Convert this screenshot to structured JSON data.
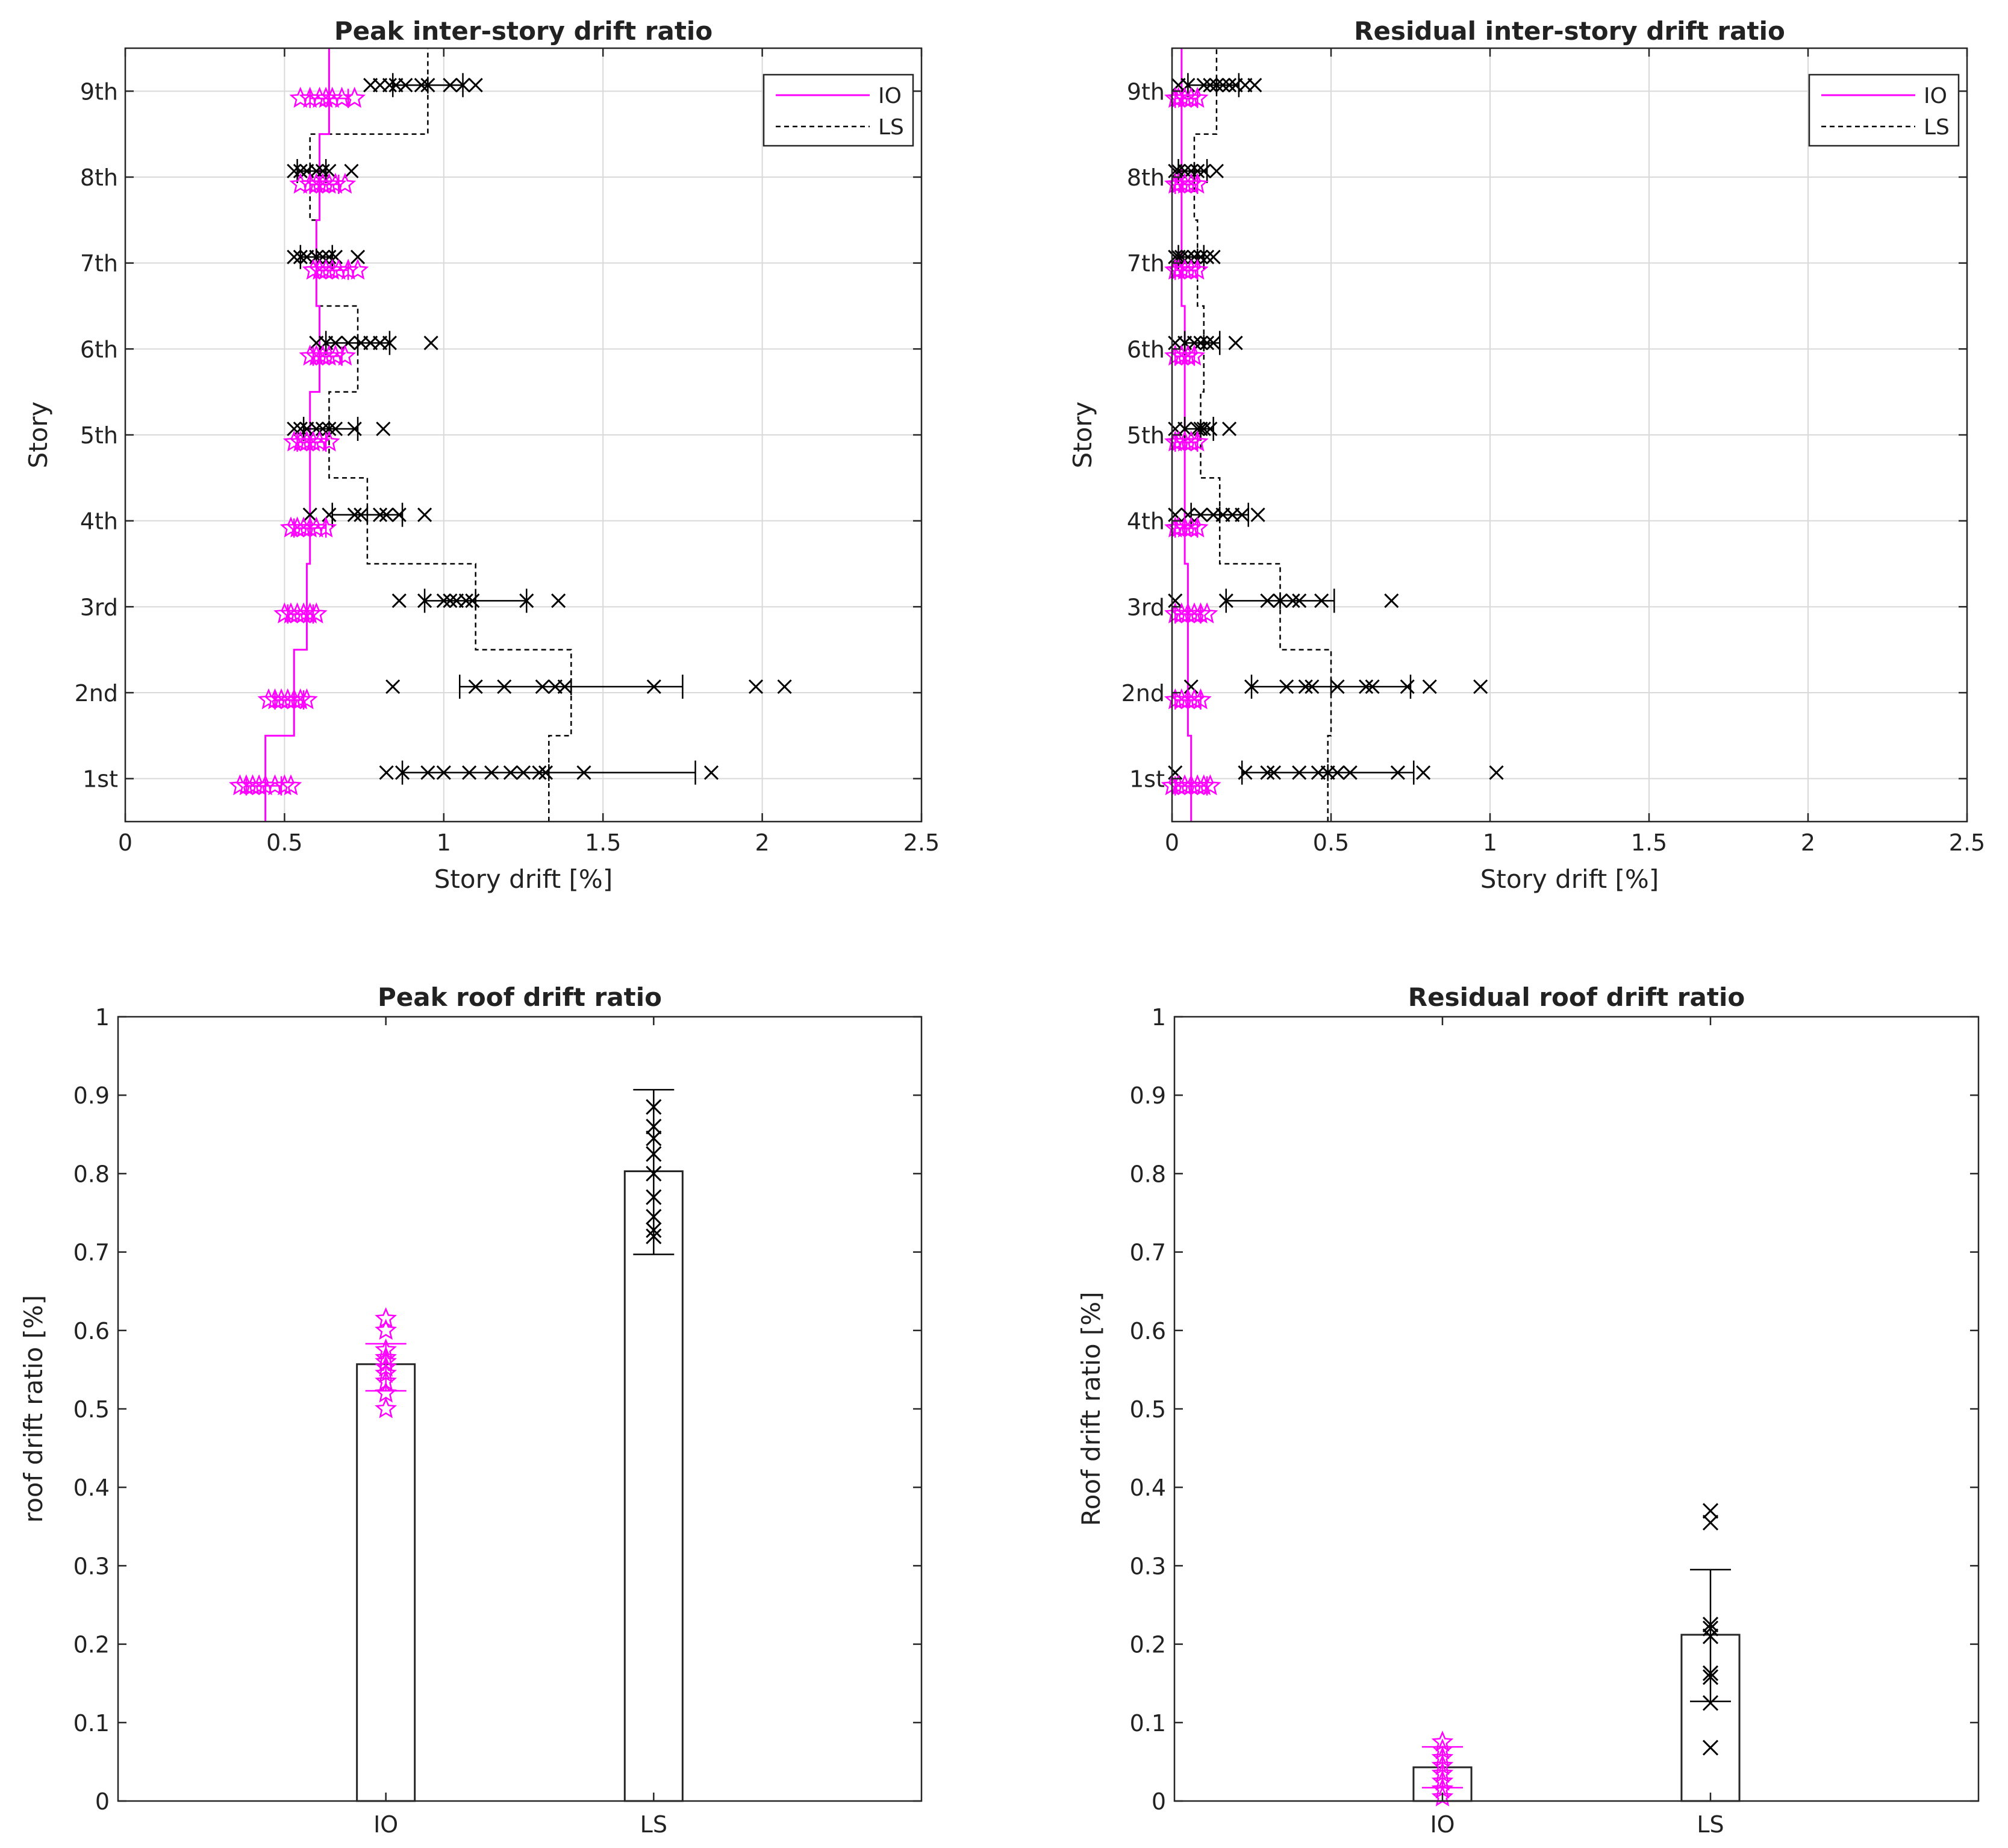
{
  "colors": {
    "io": "#ff00ff",
    "ls": "#000000",
    "grid": "#d9d9d9",
    "axis": "#262626"
  },
  "chart_data": [
    {
      "id": "peak_isdr",
      "type": "scatter",
      "title": "Peak inter-story drift ratio",
      "xlabel": "Story drift [%]",
      "ylabel": "Story",
      "xlim": [
        0,
        2.5
      ],
      "xticks": [
        0,
        0.5,
        1,
        1.5,
        2,
        2.5
      ],
      "xtick_labels": [
        "0",
        "0.5",
        "1",
        "1.5",
        "2",
        "2.5"
      ],
      "stories": [
        "1st",
        "2nd",
        "3rd",
        "4th",
        "5th",
        "6th",
        "7th",
        "8th",
        "9th"
      ],
      "grid": true,
      "legend": {
        "position": "top-right",
        "entries": [
          "IO",
          "LS"
        ]
      },
      "io_limit": [
        0.44,
        0.53,
        0.57,
        0.58,
        0.58,
        0.61,
        0.6,
        0.61,
        0.64
      ],
      "ls_limit": [
        1.33,
        1.4,
        1.1,
        0.76,
        0.64,
        0.73,
        0.6,
        0.58,
        0.95
      ],
      "ls_points": [
        [
          0.82,
          0.87,
          0.95,
          1.0,
          1.08,
          1.15,
          1.21,
          1.25,
          1.3,
          1.32,
          1.44,
          1.84
        ],
        [
          0.84,
          1.1,
          1.19,
          1.31,
          1.35,
          1.38,
          1.66,
          1.98,
          2.07
        ],
        [
          0.86,
          0.94,
          1.0,
          1.02,
          1.04,
          1.07,
          1.09,
          1.26,
          1.36
        ],
        [
          0.58,
          0.64,
          0.72,
          0.74,
          0.8,
          0.82,
          0.86,
          0.94
        ],
        [
          0.53,
          0.55,
          0.57,
          0.6,
          0.62,
          0.64,
          0.66,
          0.72,
          0.81
        ],
        [
          0.6,
          0.63,
          0.66,
          0.7,
          0.74,
          0.77,
          0.8,
          0.83,
          0.96
        ],
        [
          0.53,
          0.55,
          0.57,
          0.6,
          0.62,
          0.64,
          0.66,
          0.73
        ],
        [
          0.53,
          0.55,
          0.57,
          0.6,
          0.62,
          0.64,
          0.71
        ],
        [
          0.77,
          0.8,
          0.83,
          0.85,
          0.88,
          0.93,
          0.95,
          1.02,
          1.06,
          1.1
        ]
      ],
      "ls_mean": [
        1.33,
        1.4,
        1.1,
        0.76,
        0.64,
        0.73,
        0.6,
        0.58,
        0.95
      ],
      "ls_err": [
        [
          0.87,
          1.79
        ],
        [
          1.05,
          1.75
        ],
        [
          0.94,
          1.26
        ],
        [
          0.65,
          0.87
        ],
        [
          0.56,
          0.73
        ],
        [
          0.63,
          0.83
        ],
        [
          0.55,
          0.65
        ],
        [
          0.54,
          0.63
        ],
        [
          0.84,
          1.06
        ]
      ],
      "io_points": [
        [
          0.36,
          0.38,
          0.4,
          0.42,
          0.44,
          0.47,
          0.5,
          0.52
        ],
        [
          0.45,
          0.47,
          0.49,
          0.51,
          0.53,
          0.55,
          0.57
        ],
        [
          0.5,
          0.52,
          0.54,
          0.56,
          0.58,
          0.6
        ],
        [
          0.52,
          0.54,
          0.56,
          0.58,
          0.6,
          0.63
        ],
        [
          0.53,
          0.55,
          0.57,
          0.59,
          0.61,
          0.64
        ],
        [
          0.58,
          0.6,
          0.62,
          0.64,
          0.66,
          0.69
        ],
        [
          0.59,
          0.61,
          0.63,
          0.65,
          0.67,
          0.7,
          0.73
        ],
        [
          0.55,
          0.58,
          0.6,
          0.62,
          0.64,
          0.66,
          0.69
        ],
        [
          0.55,
          0.58,
          0.61,
          0.63,
          0.65,
          0.68,
          0.72
        ]
      ],
      "io_err": [
        [
          0.38,
          0.49
        ],
        [
          0.47,
          0.56
        ],
        [
          0.51,
          0.59
        ],
        [
          0.53,
          0.63
        ],
        [
          0.54,
          0.63
        ],
        [
          0.59,
          0.68
        ],
        [
          0.6,
          0.7
        ],
        [
          0.58,
          0.67
        ],
        [
          0.58,
          0.7
        ]
      ]
    },
    {
      "id": "residual_isdr",
      "type": "scatter",
      "title": "Residual inter-story drift ratio",
      "xlabel": "Story drift [%]",
      "ylabel": "Story",
      "xlim": [
        0,
        2.5
      ],
      "xticks": [
        0,
        0.5,
        1,
        1.5,
        2,
        2.5
      ],
      "xtick_labels": [
        "0",
        "0.5",
        "1",
        "1.5",
        "2",
        "2.5"
      ],
      "stories": [
        "1st",
        "2nd",
        "3rd",
        "4th",
        "5th",
        "6th",
        "7th",
        "8th",
        "9th"
      ],
      "grid": true,
      "legend": {
        "position": "top-right",
        "entries": [
          "IO",
          "LS"
        ]
      },
      "io_limit": [
        0.06,
        0.05,
        0.05,
        0.04,
        0.04,
        0.04,
        0.03,
        0.03,
        0.03
      ],
      "ls_limit": [
        0.49,
        0.5,
        0.34,
        0.15,
        0.09,
        0.1,
        0.08,
        0.07,
        0.14
      ],
      "ls_points": [
        [
          0.01,
          0.23,
          0.3,
          0.32,
          0.4,
          0.46,
          0.49,
          0.52,
          0.56,
          0.71,
          0.79,
          1.02
        ],
        [
          0.06,
          0.25,
          0.36,
          0.42,
          0.44,
          0.52,
          0.61,
          0.63,
          0.74,
          0.81,
          0.97
        ],
        [
          0.01,
          0.17,
          0.3,
          0.34,
          0.38,
          0.4,
          0.47,
          0.69
        ],
        [
          0.01,
          0.05,
          0.09,
          0.13,
          0.16,
          0.19,
          0.22,
          0.27
        ],
        [
          0.01,
          0.04,
          0.08,
          0.09,
          0.1,
          0.12,
          0.18
        ],
        [
          0.01,
          0.04,
          0.07,
          0.09,
          0.11,
          0.13,
          0.2
        ],
        [
          0.01,
          0.02,
          0.03,
          0.05,
          0.07,
          0.09,
          0.11,
          0.13
        ],
        [
          0.01,
          0.02,
          0.04,
          0.06,
          0.08,
          0.1,
          0.14
        ],
        [
          0.02,
          0.05,
          0.1,
          0.12,
          0.14,
          0.16,
          0.18,
          0.2,
          0.23,
          0.26
        ]
      ],
      "ls_mean": [
        0.49,
        0.5,
        0.34,
        0.15,
        0.09,
        0.1,
        0.08,
        0.07,
        0.14
      ],
      "ls_err": [
        [
          0.22,
          0.76
        ],
        [
          0.25,
          0.75
        ],
        [
          0.17,
          0.51
        ],
        [
          0.06,
          0.24
        ],
        [
          0.04,
          0.13
        ],
        [
          0.04,
          0.15
        ],
        [
          0.02,
          0.1
        ],
        [
          0.02,
          0.11
        ],
        [
          0.05,
          0.21
        ]
      ],
      "io_points": [
        [
          0.0,
          0.02,
          0.04,
          0.06,
          0.08,
          0.1,
          0.12
        ],
        [
          0.01,
          0.03,
          0.05,
          0.07,
          0.09
        ],
        [
          0.01,
          0.03,
          0.05,
          0.07,
          0.09,
          0.11
        ],
        [
          0.01,
          0.02,
          0.04,
          0.06,
          0.08
        ],
        [
          0.01,
          0.02,
          0.04,
          0.06,
          0.08
        ],
        [
          0.01,
          0.03,
          0.05,
          0.07
        ],
        [
          0.01,
          0.02,
          0.04,
          0.06,
          0.08
        ],
        [
          0.01,
          0.02,
          0.04,
          0.06,
          0.08
        ],
        [
          0.01,
          0.02,
          0.04,
          0.06,
          0.08
        ]
      ],
      "io_err": [
        [
          0.01,
          0.11
        ],
        [
          0.01,
          0.09
        ],
        [
          0.01,
          0.09
        ],
        [
          0.01,
          0.08
        ],
        [
          0.01,
          0.08
        ],
        [
          0.01,
          0.07
        ],
        [
          0.01,
          0.08
        ],
        [
          0.01,
          0.08
        ],
        [
          0.01,
          0.08
        ]
      ]
    },
    {
      "id": "peak_roof",
      "type": "bar",
      "title": "Peak roof drift ratio",
      "ylabel": "roof drift ratio [%]",
      "categories": [
        "IO",
        "LS"
      ],
      "values": [
        0.557,
        0.803
      ],
      "ylim": [
        0,
        1
      ],
      "yticks": [
        0,
        0.1,
        0.2,
        0.3,
        0.4,
        0.5,
        0.6,
        0.7,
        0.8,
        0.9,
        1
      ],
      "ytick_labels": [
        "0",
        "0.1",
        "0.2",
        "0.3",
        "0.4",
        "0.5",
        "0.6",
        "0.7",
        "0.8",
        "0.9",
        "1"
      ],
      "err": [
        [
          0.523,
          0.583
        ],
        [
          0.697,
          0.907
        ]
      ],
      "points": [
        [
          0.5,
          0.52,
          0.535,
          0.545,
          0.553,
          0.56,
          0.565,
          0.575,
          0.6,
          0.615
        ],
        [
          0.72,
          0.728,
          0.745,
          0.77,
          0.8,
          0.825,
          0.845,
          0.86,
          0.885
        ]
      ],
      "grid": false
    },
    {
      "id": "residual_roof",
      "type": "bar",
      "title": "Residual roof drift ratio",
      "ylabel": "Roof drift ratio [%]",
      "categories": [
        "IO",
        "LS"
      ],
      "values": [
        0.043,
        0.212
      ],
      "ylim": [
        0,
        1
      ],
      "yticks": [
        0,
        0.1,
        0.2,
        0.3,
        0.4,
        0.5,
        0.6,
        0.7,
        0.8,
        0.9,
        1
      ],
      "ytick_labels": [
        "0",
        "0.1",
        "0.2",
        "0.3",
        "0.4",
        "0.5",
        "0.6",
        "0.7",
        "0.8",
        "0.9",
        "1"
      ],
      "err": [
        [
          0.017,
          0.069
        ],
        [
          0.127,
          0.295
        ]
      ],
      "points": [
        [
          0.005,
          0.015,
          0.025,
          0.035,
          0.045,
          0.055,
          0.065,
          0.075
        ],
        [
          0.068,
          0.125,
          0.158,
          0.163,
          0.21,
          0.22,
          0.225,
          0.355,
          0.37
        ]
      ],
      "grid": false
    }
  ]
}
